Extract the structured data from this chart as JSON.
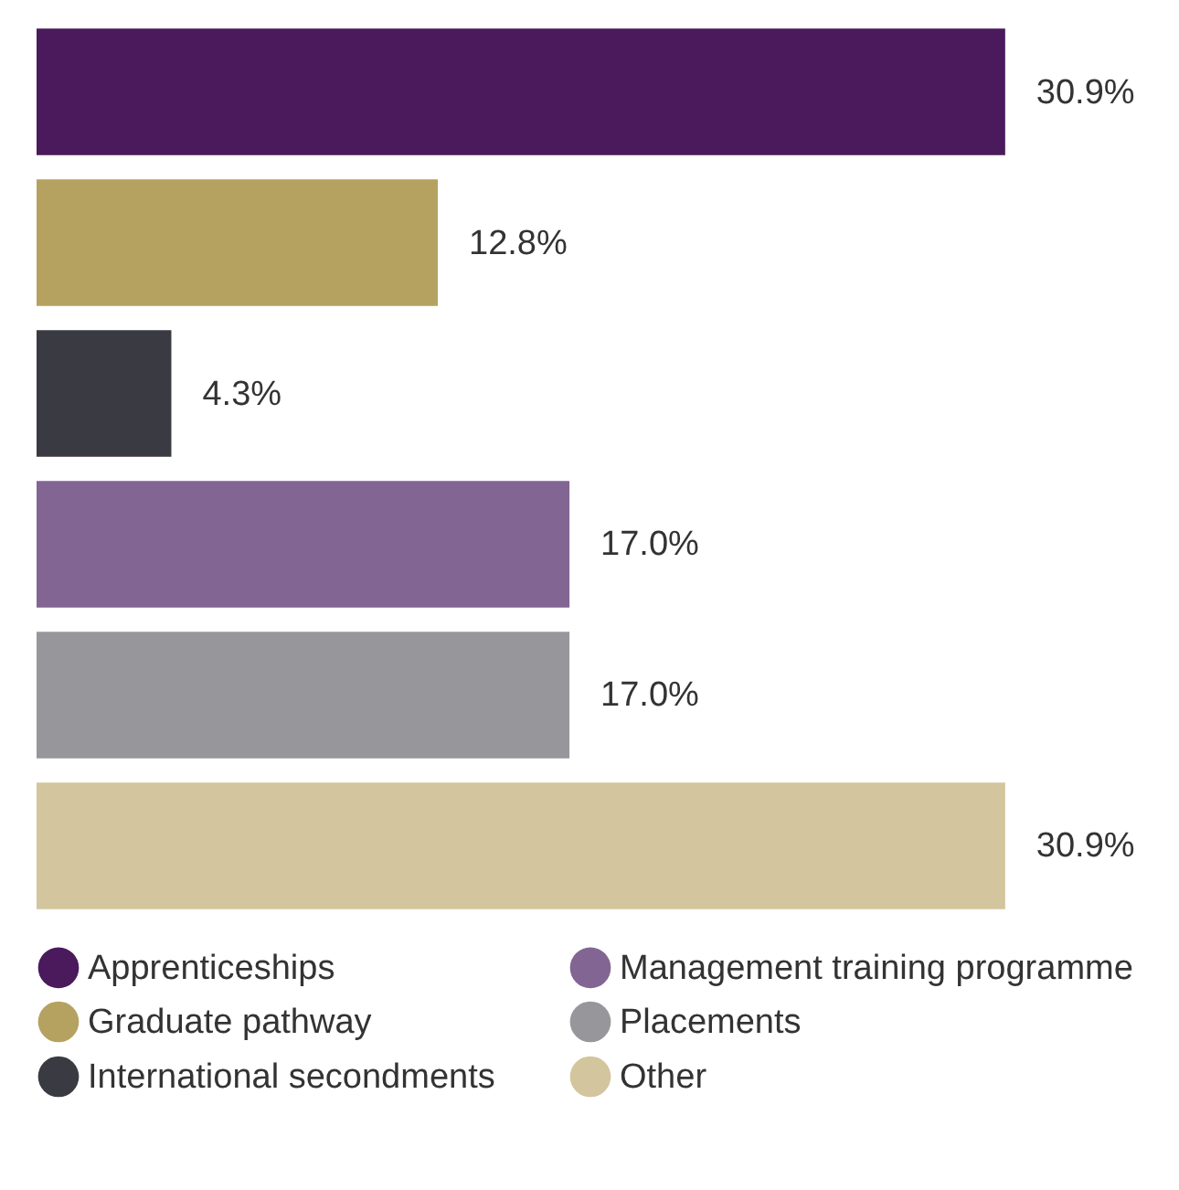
{
  "chart_data": {
    "type": "bar",
    "orientation": "horizontal",
    "categories": [
      null,
      null,
      null,
      null,
      null,
      null
    ],
    "series": [
      {
        "name": "Apprenticeships",
        "color": "#4a1a5c",
        "values": [
          30.9,
          null,
          null,
          null,
          null,
          null
        ],
        "value_labels": [
          "30.9%",
          null,
          null,
          null,
          null,
          null
        ]
      },
      {
        "name": "Graduate pathway",
        "color": "#b5a260",
        "values": [
          null,
          12.8,
          null,
          null,
          null,
          null
        ],
        "value_labels": [
          null,
          "12.8%",
          null,
          null,
          null,
          null
        ]
      },
      {
        "name": "International secondments",
        "color": "#3a3a42",
        "values": [
          null,
          null,
          4.3,
          null,
          null,
          null
        ],
        "value_labels": [
          null,
          null,
          "4.3%",
          null,
          null,
          null
        ]
      },
      {
        "name": "Management training programme",
        "color": "#836593",
        "values": [
          null,
          null,
          null,
          17.0,
          null,
          null
        ],
        "value_labels": [
          null,
          null,
          null,
          "17.0%",
          null,
          null
        ]
      },
      {
        "name": "Placements",
        "color": "#97979b",
        "values": [
          null,
          null,
          null,
          null,
          17.0,
          null
        ],
        "value_labels": [
          null,
          null,
          null,
          null,
          "17.0%",
          null
        ]
      },
      {
        "name": "Other",
        "color": "#d3c59d",
        "values": [
          null,
          null,
          null,
          null,
          null,
          30.9
        ],
        "value_labels": [
          null,
          null,
          null,
          null,
          null,
          "30.9%"
        ]
      }
    ],
    "stacked": true,
    "legend": "bottom",
    "tick_labels": false
  }
}
